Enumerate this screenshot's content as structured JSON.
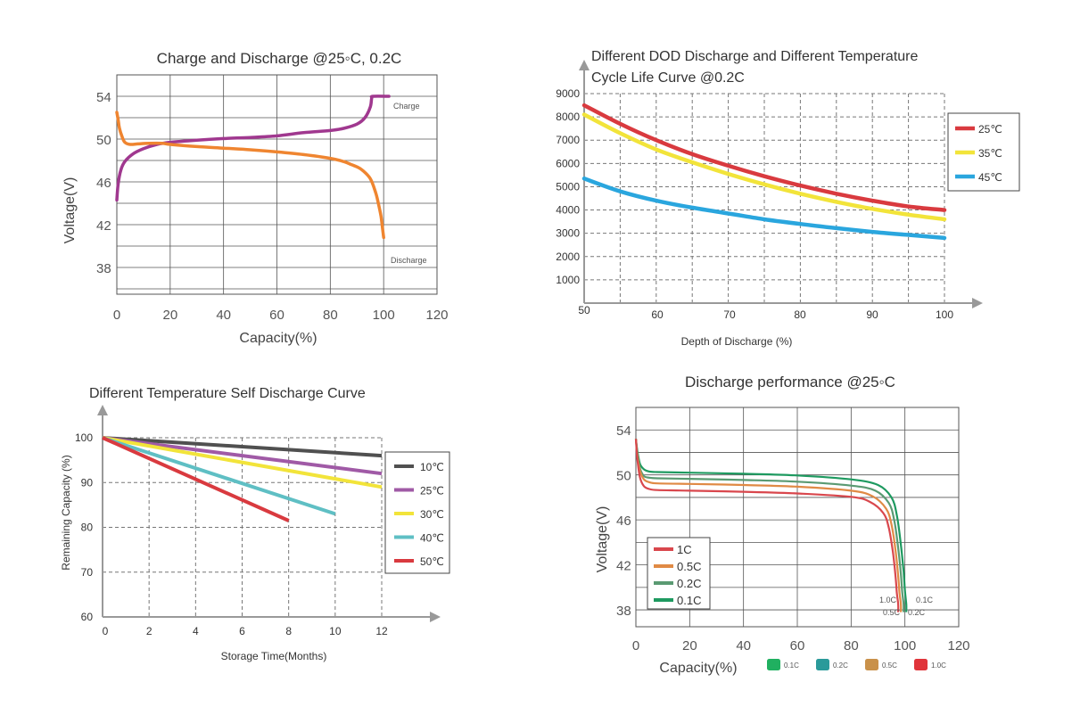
{
  "chart_data": [
    {
      "id": "c1",
      "type": "line",
      "title": "Charge and Discharge @25◦C, 0.2C",
      "xlabel": "Capacity(%)",
      "ylabel": "Voltage(V)",
      "xlim": [
        0,
        120
      ],
      "ylim": [
        35.5,
        56
      ],
      "x_ticks": [
        "0",
        "20",
        "40",
        "60",
        "80",
        "100",
        "120"
      ],
      "y_ticks": [
        "38",
        "42",
        "46",
        "50",
        "54"
      ],
      "grid": true,
      "series": [
        {
          "name": "Charge",
          "color": "#a0388f",
          "x": [
            0,
            0.5,
            1.5,
            3,
            6,
            10,
            15,
            20,
            30,
            40,
            50,
            60,
            70,
            80,
            85,
            90,
            93,
            95,
            95.5,
            96,
            102
          ],
          "y": [
            44.3,
            45.8,
            47.1,
            47.9,
            48.6,
            49.1,
            49.5,
            49.7,
            49.9,
            50.05,
            50.15,
            50.3,
            50.6,
            50.8,
            51.0,
            51.4,
            52.0,
            53.0,
            53.8,
            54.0,
            54.0
          ]
        },
        {
          "name": "Discharge",
          "color": "#ef8530",
          "x": [
            0,
            0.5,
            1,
            2,
            3,
            5,
            8,
            12,
            17,
            20,
            30,
            40,
            50,
            60,
            70,
            80,
            85,
            88,
            90,
            92,
            95,
            97,
            98,
            99,
            99.5,
            100
          ],
          "y": [
            52.5,
            51.8,
            51.0,
            50.2,
            49.7,
            49.5,
            49.55,
            49.6,
            49.6,
            49.5,
            49.3,
            49.15,
            49.0,
            48.8,
            48.55,
            48.2,
            47.9,
            47.6,
            47.4,
            47.1,
            46.3,
            45.0,
            44.0,
            42.8,
            41.8,
            40.8
          ]
        }
      ],
      "annotations": [
        "Charge",
        "Discharge"
      ]
    },
    {
      "id": "c2",
      "type": "line",
      "title": [
        "Different DOD Discharge and Different Temperature",
        "Cycle Life Curve @0.2C"
      ],
      "xlabel": "Depth of Discharge  (%)",
      "ylabel": "",
      "xlim": [
        50,
        100
      ],
      "ylim": [
        0,
        9000
      ],
      "x_ticks": [
        "50",
        "60",
        "70",
        "80",
        "90",
        "100"
      ],
      "y_ticks": [
        "1000",
        "2000",
        "3000",
        "4000",
        "5000",
        "6000",
        "7000",
        "8000",
        "9000"
      ],
      "grid": true,
      "legend": "right",
      "series": [
        {
          "name": "25℃",
          "color": "#d93a3f",
          "x": [
            50,
            55,
            60,
            65,
            70,
            75,
            80,
            85,
            90,
            95,
            100
          ],
          "y": [
            8500,
            7700,
            7000,
            6400,
            5900,
            5450,
            5050,
            4700,
            4400,
            4150,
            4000
          ]
        },
        {
          "name": "35℃",
          "color": "#f2e43a",
          "x": [
            50,
            55,
            60,
            65,
            70,
            75,
            80,
            85,
            90,
            95,
            100
          ],
          "y": [
            8100,
            7300,
            6600,
            6050,
            5550,
            5100,
            4700,
            4350,
            4050,
            3800,
            3600
          ]
        },
        {
          "name": "45℃",
          "color": "#2aa6de",
          "x": [
            50,
            55,
            60,
            65,
            70,
            75,
            80,
            85,
            90,
            95,
            100
          ],
          "y": [
            5350,
            4800,
            4400,
            4100,
            3850,
            3600,
            3400,
            3220,
            3060,
            2930,
            2800
          ]
        }
      ]
    },
    {
      "id": "c3",
      "type": "line",
      "title": "Different Temperature Self Discharge Curve",
      "xlabel": "Storage Time(Months)",
      "ylabel": "Remaining Capacity (%)",
      "xlim": [
        0,
        12
      ],
      "ylim": [
        60,
        100
      ],
      "x_ticks": [
        "0",
        "2",
        "4",
        "6",
        "8",
        "10",
        "12"
      ],
      "y_ticks": [
        "60",
        "70",
        "80",
        "90",
        "100"
      ],
      "grid": true,
      "legend": "right",
      "series": [
        {
          "name": "10℃",
          "color": "#505050",
          "x": [
            0,
            12
          ],
          "y": [
            100,
            96
          ]
        },
        {
          "name": "25℃",
          "color": "#a05aa6",
          "x": [
            0,
            12
          ],
          "y": [
            100,
            92
          ]
        },
        {
          "name": "30℃",
          "color": "#f2e43a",
          "x": [
            0,
            12
          ],
          "y": [
            100,
            89
          ]
        },
        {
          "name": "40℃",
          "color": "#5fbfc4",
          "x": [
            0,
            10
          ],
          "y": [
            100,
            83
          ]
        },
        {
          "name": "50℃",
          "color": "#d93a3f",
          "x": [
            0,
            8
          ],
          "y": [
            100,
            81.5
          ]
        }
      ]
    },
    {
      "id": "c4",
      "type": "line",
      "title": "Discharge performance @25◦C",
      "xlabel": "Capacity(%)",
      "ylabel": "Voltage(V)",
      "xlim": [
        0,
        120
      ],
      "ylim": [
        36.5,
        56
      ],
      "x_ticks": [
        "0",
        "20",
        "40",
        "60",
        "80",
        "100",
        "120"
      ],
      "y_ticks": [
        "38",
        "42",
        "46",
        "50",
        "54"
      ],
      "grid": true,
      "legend": "lower-left",
      "series": [
        {
          "name": "1C",
          "color": "#d9474d",
          "x": [
            0,
            0.5,
            1.5,
            3,
            5,
            8,
            20,
            40,
            60,
            80,
            87,
            92,
            94,
            95.5,
            96.5,
            97,
            97.5,
            97.5
          ],
          "y": [
            53.2,
            51.5,
            49.8,
            49.0,
            48.75,
            48.65,
            48.6,
            48.5,
            48.35,
            48.05,
            47.6,
            46.6,
            45.3,
            43.2,
            41.0,
            39.5,
            38.5,
            37.8
          ]
        },
        {
          "name": "0.5C",
          "color": "#e08a45",
          "x": [
            0,
            0.5,
            1.5,
            3,
            5,
            8,
            20,
            40,
            60,
            80,
            88,
            93,
            95,
            96.5,
            97.5,
            98,
            98.5,
            98.5
          ],
          "y": [
            53.2,
            51.8,
            50.4,
            49.6,
            49.35,
            49.25,
            49.2,
            49.1,
            48.95,
            48.6,
            48.1,
            47.0,
            45.6,
            43.3,
            41.0,
            39.5,
            38.5,
            37.8
          ]
        },
        {
          "name": "0.2C",
          "color": "#5a9a72",
          "x": [
            0,
            0.5,
            1.5,
            3,
            5,
            8,
            20,
            40,
            60,
            80,
            89,
            94,
            96,
            97.5,
            98.5,
            99,
            99.5,
            99.5
          ],
          "y": [
            53.2,
            52.0,
            50.6,
            49.9,
            49.75,
            49.7,
            49.65,
            49.55,
            49.4,
            49.05,
            48.6,
            47.5,
            46.0,
            43.5,
            41.2,
            39.6,
            38.5,
            37.8
          ]
        },
        {
          "name": "0.1C",
          "color": "#1e9a60",
          "x": [
            0,
            0.5,
            1.5,
            3,
            5,
            8,
            20,
            40,
            60,
            80,
            90,
            95,
            97,
            98.5,
            99.5,
            100,
            100.5,
            100.5
          ],
          "y": [
            53.2,
            52.2,
            51.0,
            50.5,
            50.3,
            50.25,
            50.2,
            50.1,
            49.95,
            49.6,
            49.1,
            48.0,
            46.4,
            43.8,
            41.4,
            39.7,
            38.5,
            37.8
          ]
        }
      ],
      "end_labels": [
        "1.0C",
        "0.1C",
        "0.5C",
        "0.2C"
      ],
      "bottom_legend": [
        {
          "name": "0.1C",
          "color": "#20b060"
        },
        {
          "name": "0.2C",
          "color": "#2a9a9a"
        },
        {
          "name": "0.5C",
          "color": "#c9914a"
        },
        {
          "name": "1.0C",
          "color": "#e0343a"
        }
      ]
    }
  ]
}
